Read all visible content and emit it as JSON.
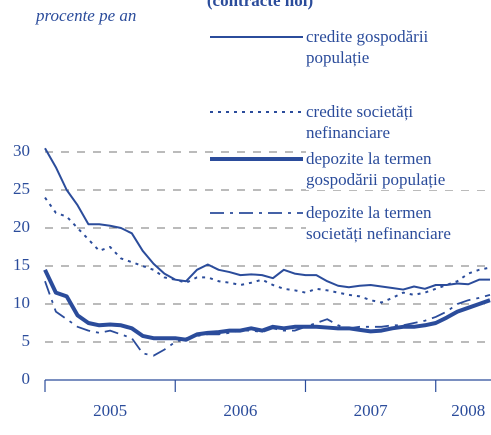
{
  "chart_data": {
    "type": "line",
    "title": "(contracte noi)",
    "y_label": "procente pe an",
    "categories": [
      null,
      null,
      null,
      null,
      null,
      null,
      "2005",
      null,
      null,
      null,
      null,
      null,
      null,
      null,
      null,
      null,
      null,
      null,
      "2006",
      null,
      null,
      null,
      null,
      null,
      null,
      null,
      null,
      null,
      null,
      null,
      "2007",
      null,
      null,
      null,
      null,
      null,
      null,
      null,
      null,
      "2008",
      null,
      null
    ],
    "ylim": [
      0,
      45
    ],
    "yticks": [
      0,
      5,
      10,
      15,
      20,
      25,
      30
    ],
    "grid": true,
    "series": [
      {
        "name": "credite gospodării populație",
        "color": "#2b4c9b",
        "style": "solid",
        "values": [
          30.5,
          28,
          25,
          23,
          20.5,
          20.5,
          20.3,
          20,
          19.3,
          17,
          15.3,
          14,
          13.2,
          13,
          14.5,
          15.2,
          14.5,
          14.2,
          13.8,
          13.9,
          13.8,
          13.4,
          14.5,
          14,
          13.8,
          13.8,
          13,
          12.4,
          12.2,
          12.4,
          12.5,
          12.3,
          12.1,
          11.9,
          12.3,
          12,
          12.5,
          12.5,
          12.7,
          12.6,
          13.2,
          13.2
        ]
      },
      {
        "name": "credite societăți nefinanciare",
        "color": "#2b4c9b",
        "style": "dotted",
        "values": [
          24,
          22,
          21.5,
          20,
          18.5,
          17,
          17.5,
          16,
          15.5,
          15,
          14.5,
          13.5,
          13.2,
          12.8,
          13.5,
          13.5,
          13,
          12.8,
          12.5,
          12.8,
          13.2,
          12.5,
          12,
          11.8,
          11.5,
          12,
          11.8,
          11.5,
          11.2,
          11,
          10.5,
          10.2,
          10.8,
          11.5,
          11.2,
          11.5,
          12,
          12.5,
          13,
          14,
          14.5,
          14.8
        ]
      },
      {
        "name": "depozite la termen gospodării populație",
        "color": "#2b4c9b",
        "style": "thick",
        "values": [
          14.5,
          11.5,
          11,
          8.5,
          7.5,
          7.2,
          7.3,
          7.2,
          6.8,
          5.8,
          5.5,
          5.5,
          5.5,
          5.3,
          6,
          6.2,
          6.3,
          6.5,
          6.5,
          6.8,
          6.5,
          7,
          6.8,
          7,
          7,
          7,
          6.9,
          6.8,
          6.8,
          6.6,
          6.4,
          6.5,
          6.8,
          7,
          7,
          7.2,
          7.5,
          8.2,
          9,
          9.5,
          10,
          10.5
        ]
      },
      {
        "name": "depozite la termen societăți nefinanciare",
        "color": "#2b4c9b",
        "style": "dashdot",
        "values": [
          13,
          9,
          8,
          7,
          6.5,
          6.2,
          6.5,
          6,
          5.5,
          3.5,
          3.2,
          4,
          5,
          5.5,
          5.8,
          6,
          6,
          6.2,
          6.5,
          6.5,
          6.3,
          6.8,
          6.5,
          6.5,
          7,
          7.5,
          8,
          7.2,
          6.8,
          7,
          7,
          7,
          7.2,
          7.2,
          7.5,
          7.8,
          8.3,
          9,
          10,
          10.5,
          10.8,
          11.2
        ]
      }
    ]
  }
}
